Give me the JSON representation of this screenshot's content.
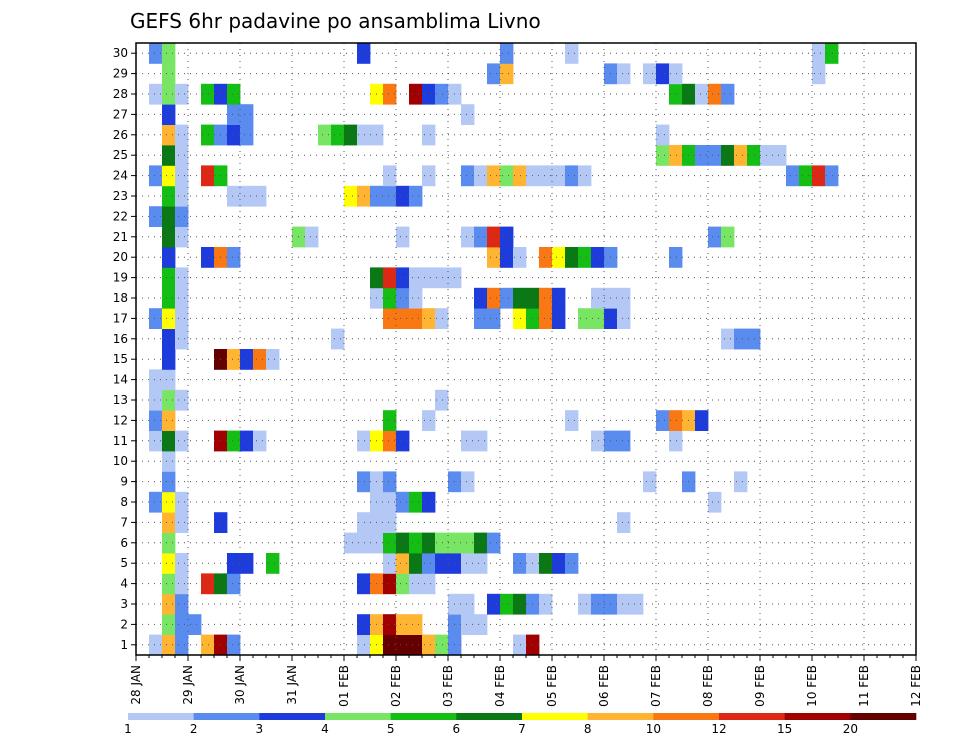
{
  "chart_data": {
    "type": "heatmap",
    "title": "GEFS 6hr padavine po ansamblima Livno",
    "xlabel": "",
    "ylabel": "",
    "x_ticks": [
      "28 JAN",
      "29 JAN",
      "30 JAN",
      "31 JAN",
      "01 FEB",
      "02 FEB",
      "03 FEB",
      "04 FEB",
      "05 FEB",
      "06 FEB",
      "07 FEB",
      "08 FEB",
      "09 FEB",
      "10 FEB",
      "11 FEB",
      "12 FEB"
    ],
    "y_ticks": [
      "1",
      "2",
      "3",
      "4",
      "5",
      "6",
      "7",
      "8",
      "9",
      "10",
      "11",
      "12",
      "13",
      "14",
      "15",
      "16",
      "17",
      "18",
      "19",
      "20",
      "21",
      "22",
      "23",
      "24",
      "25",
      "26",
      "27",
      "28",
      "29",
      "30"
    ],
    "x_range": [
      "28 JAN 00Z",
      "12 FEB 00Z"
    ],
    "y_range": [
      0.5,
      30.5
    ],
    "grid": true,
    "legend_position": "bottom",
    "color_scale": {
      "thresholds": [
        "1",
        "2",
        "3",
        "4",
        "5",
        "6",
        "7",
        "8",
        "10",
        "12",
        "15",
        "20"
      ],
      "colors": [
        "#b4c8f5",
        "#5a8cf0",
        "#1e3cdc",
        "#78e664",
        "#14be14",
        "#0a7814",
        "#ffff00",
        "#ffb432",
        "#fa7814",
        "#dc2814",
        "#a00000",
        "#640000"
      ]
    },
    "cells": [
      [
        1,
        1,
        1
      ],
      [
        1,
        2,
        8
      ],
      [
        1,
        3,
        2
      ],
      [
        1,
        5,
        8
      ],
      [
        1,
        6,
        11
      ],
      [
        1,
        7,
        2
      ],
      [
        1,
        17,
        1
      ],
      [
        1,
        18,
        7
      ],
      [
        1,
        19,
        12
      ],
      [
        1,
        20,
        12
      ],
      [
        1,
        21,
        12
      ],
      [
        1,
        22,
        8
      ],
      [
        1,
        23,
        4
      ],
      [
        1,
        24,
        2
      ],
      [
        1,
        29,
        1
      ],
      [
        1,
        30,
        11
      ],
      [
        2,
        2,
        4
      ],
      [
        2,
        3,
        2
      ],
      [
        2,
        4,
        2
      ],
      [
        2,
        17,
        3
      ],
      [
        2,
        18,
        8
      ],
      [
        2,
        19,
        11
      ],
      [
        2,
        20,
        8
      ],
      [
        2,
        21,
        8
      ],
      [
        2,
        24,
        2
      ],
      [
        2,
        25,
        1
      ],
      [
        2,
        26,
        1
      ],
      [
        3,
        2,
        8
      ],
      [
        3,
        3,
        2
      ],
      [
        3,
        24,
        1
      ],
      [
        3,
        25,
        1
      ],
      [
        3,
        27,
        3
      ],
      [
        3,
        28,
        5
      ],
      [
        3,
        29,
        6
      ],
      [
        3,
        30,
        2
      ],
      [
        3,
        31,
        1
      ],
      [
        3,
        34,
        1
      ],
      [
        3,
        35,
        2
      ],
      [
        3,
        36,
        2
      ],
      [
        3,
        37,
        1
      ],
      [
        3,
        38,
        1
      ],
      [
        4,
        2,
        4
      ],
      [
        4,
        3,
        1
      ],
      [
        4,
        5,
        10
      ],
      [
        4,
        6,
        6
      ],
      [
        4,
        7,
        2
      ],
      [
        4,
        17,
        3
      ],
      [
        4,
        18,
        9
      ],
      [
        4,
        19,
        11
      ],
      [
        4,
        20,
        4
      ],
      [
        4,
        21,
        1
      ],
      [
        4,
        22,
        1
      ],
      [
        5,
        2,
        7
      ],
      [
        5,
        3,
        1
      ],
      [
        5,
        7,
        3
      ],
      [
        5,
        8,
        3
      ],
      [
        5,
        10,
        5
      ],
      [
        5,
        19,
        1
      ],
      [
        5,
        20,
        8
      ],
      [
        5,
        21,
        6
      ],
      [
        5,
        22,
        2
      ],
      [
        5,
        23,
        3
      ],
      [
        5,
        24,
        3
      ],
      [
        5,
        25,
        1
      ],
      [
        5,
        26,
        1
      ],
      [
        5,
        29,
        2
      ],
      [
        5,
        30,
        1
      ],
      [
        5,
        31,
        6
      ],
      [
        5,
        32,
        3
      ],
      [
        5,
        33,
        2
      ],
      [
        6,
        2,
        4
      ],
      [
        6,
        16,
        1
      ],
      [
        6,
        17,
        1
      ],
      [
        6,
        18,
        1
      ],
      [
        6,
        19,
        5
      ],
      [
        6,
        20,
        6
      ],
      [
        6,
        21,
        5
      ],
      [
        6,
        22,
        6
      ],
      [
        6,
        23,
        4
      ],
      [
        6,
        24,
        4
      ],
      [
        6,
        25,
        4
      ],
      [
        6,
        26,
        6
      ],
      [
        6,
        27,
        2
      ],
      [
        7,
        2,
        8
      ],
      [
        7,
        3,
        1
      ],
      [
        7,
        6,
        3
      ],
      [
        7,
        17,
        1
      ],
      [
        7,
        18,
        1
      ],
      [
        7,
        19,
        1
      ],
      [
        7,
        37,
        1
      ],
      [
        8,
        1,
        2
      ],
      [
        8,
        2,
        7
      ],
      [
        8,
        3,
        1
      ],
      [
        8,
        18,
        1
      ],
      [
        8,
        19,
        1
      ],
      [
        8,
        20,
        2
      ],
      [
        8,
        21,
        5
      ],
      [
        8,
        22,
        3
      ],
      [
        8,
        44,
        1
      ],
      [
        9,
        2,
        2
      ],
      [
        9,
        17,
        2
      ],
      [
        9,
        18,
        1
      ],
      [
        9,
        19,
        2
      ],
      [
        9,
        24,
        2
      ],
      [
        9,
        25,
        1
      ],
      [
        9,
        39,
        1
      ],
      [
        9,
        42,
        2
      ],
      [
        9,
        46,
        1
      ],
      [
        10,
        2,
        1
      ],
      [
        11,
        1,
        1
      ],
      [
        11,
        2,
        6
      ],
      [
        11,
        3,
        1
      ],
      [
        11,
        6,
        11
      ],
      [
        11,
        7,
        5
      ],
      [
        11,
        8,
        3
      ],
      [
        11,
        9,
        1
      ],
      [
        11,
        17,
        1
      ],
      [
        11,
        18,
        7
      ],
      [
        11,
        19,
        9
      ],
      [
        11,
        20,
        3
      ],
      [
        11,
        25,
        1
      ],
      [
        11,
        26,
        1
      ],
      [
        11,
        35,
        1
      ],
      [
        11,
        36,
        2
      ],
      [
        11,
        37,
        2
      ],
      [
        11,
        41,
        1
      ],
      [
        12,
        1,
        2
      ],
      [
        12,
        2,
        8
      ],
      [
        12,
        19,
        5
      ],
      [
        12,
        22,
        1
      ],
      [
        12,
        33,
        1
      ],
      [
        12,
        40,
        2
      ],
      [
        12,
        41,
        9
      ],
      [
        12,
        42,
        8
      ],
      [
        12,
        43,
        3
      ],
      [
        13,
        1,
        1
      ],
      [
        13,
        2,
        4
      ],
      [
        13,
        3,
        1
      ],
      [
        13,
        23,
        1
      ],
      [
        14,
        1,
        1
      ],
      [
        14,
        2,
        1
      ],
      [
        15,
        2,
        3
      ],
      [
        15,
        6,
        12
      ],
      [
        15,
        7,
        8
      ],
      [
        15,
        8,
        3
      ],
      [
        15,
        9,
        9
      ],
      [
        15,
        10,
        1
      ],
      [
        16,
        2,
        3
      ],
      [
        16,
        3,
        1
      ],
      [
        16,
        15,
        1
      ],
      [
        16,
        45,
        1
      ],
      [
        16,
        46,
        2
      ],
      [
        16,
        47,
        2
      ],
      [
        17,
        1,
        2
      ],
      [
        17,
        2,
        7
      ],
      [
        17,
        3,
        1
      ],
      [
        17,
        19,
        9
      ],
      [
        17,
        20,
        9
      ],
      [
        17,
        21,
        9
      ],
      [
        17,
        22,
        8
      ],
      [
        17,
        23,
        1
      ],
      [
        17,
        26,
        2
      ],
      [
        17,
        27,
        2
      ],
      [
        17,
        29,
        7
      ],
      [
        17,
        30,
        5
      ],
      [
        17,
        31,
        9
      ],
      [
        17,
        32,
        3
      ],
      [
        17,
        34,
        4
      ],
      [
        17,
        35,
        4
      ],
      [
        17,
        36,
        3
      ],
      [
        17,
        37,
        1
      ],
      [
        18,
        2,
        5
      ],
      [
        18,
        3,
        1
      ],
      [
        18,
        18,
        1
      ],
      [
        18,
        19,
        5
      ],
      [
        18,
        20,
        2
      ],
      [
        18,
        21,
        1
      ],
      [
        18,
        26,
        3
      ],
      [
        18,
        27,
        9
      ],
      [
        18,
        28,
        2
      ],
      [
        18,
        29,
        6
      ],
      [
        18,
        30,
        6
      ],
      [
        18,
        31,
        9
      ],
      [
        18,
        32,
        3
      ],
      [
        18,
        35,
        1
      ],
      [
        18,
        36,
        1
      ],
      [
        18,
        37,
        1
      ],
      [
        19,
        2,
        5
      ],
      [
        19,
        3,
        1
      ],
      [
        19,
        18,
        6
      ],
      [
        19,
        19,
        10
      ],
      [
        19,
        20,
        3
      ],
      [
        19,
        21,
        1
      ],
      [
        19,
        22,
        1
      ],
      [
        19,
        23,
        1
      ],
      [
        19,
        24,
        1
      ],
      [
        20,
        2,
        3
      ],
      [
        20,
        5,
        3
      ],
      [
        20,
        6,
        9
      ],
      [
        20,
        7,
        2
      ],
      [
        20,
        27,
        8
      ],
      [
        20,
        28,
        3
      ],
      [
        20,
        29,
        1
      ],
      [
        20,
        31,
        9
      ],
      [
        20,
        32,
        7
      ],
      [
        20,
        33,
        6
      ],
      [
        20,
        34,
        5
      ],
      [
        20,
        35,
        3
      ],
      [
        20,
        36,
        2
      ],
      [
        20,
        41,
        2
      ],
      [
        21,
        2,
        6
      ],
      [
        21,
        3,
        1
      ],
      [
        21,
        12,
        4
      ],
      [
        21,
        13,
        1
      ],
      [
        21,
        20,
        1
      ],
      [
        21,
        25,
        1
      ],
      [
        21,
        26,
        2
      ],
      [
        21,
        27,
        10
      ],
      [
        21,
        28,
        3
      ],
      [
        21,
        44,
        2
      ],
      [
        21,
        45,
        4
      ],
      [
        22,
        1,
        2
      ],
      [
        22,
        2,
        6
      ],
      [
        22,
        3,
        2
      ],
      [
        23,
        2,
        5
      ],
      [
        23,
        3,
        1
      ],
      [
        23,
        7,
        1
      ],
      [
        23,
        8,
        1
      ],
      [
        23,
        9,
        1
      ],
      [
        23,
        16,
        7
      ],
      [
        23,
        17,
        8
      ],
      [
        23,
        18,
        2
      ],
      [
        23,
        19,
        2
      ],
      [
        23,
        20,
        3
      ],
      [
        23,
        21,
        2
      ],
      [
        24,
        1,
        2
      ],
      [
        24,
        2,
        7
      ],
      [
        24,
        3,
        1
      ],
      [
        24,
        5,
        10
      ],
      [
        24,
        6,
        5
      ],
      [
        24,
        19,
        1
      ],
      [
        24,
        22,
        1
      ],
      [
        24,
        25,
        2
      ],
      [
        24,
        26,
        1
      ],
      [
        24,
        27,
        8
      ],
      [
        24,
        28,
        4
      ],
      [
        24,
        29,
        8
      ],
      [
        24,
        30,
        1
      ],
      [
        24,
        31,
        1
      ],
      [
        24,
        32,
        1
      ],
      [
        24,
        33,
        2
      ],
      [
        24,
        34,
        1
      ],
      [
        24,
        50,
        2
      ],
      [
        24,
        51,
        5
      ],
      [
        24,
        52,
        10
      ],
      [
        24,
        53,
        2
      ],
      [
        25,
        2,
        6
      ],
      [
        25,
        3,
        1
      ],
      [
        25,
        40,
        4
      ],
      [
        25,
        41,
        8
      ],
      [
        25,
        42,
        5
      ],
      [
        25,
        43,
        2
      ],
      [
        25,
        44,
        2
      ],
      [
        25,
        45,
        6
      ],
      [
        25,
        46,
        8
      ],
      [
        25,
        47,
        5
      ],
      [
        25,
        48,
        1
      ],
      [
        25,
        49,
        1
      ],
      [
        26,
        2,
        8
      ],
      [
        26,
        3,
        1
      ],
      [
        26,
        5,
        5
      ],
      [
        26,
        6,
        2
      ],
      [
        26,
        7,
        3
      ],
      [
        26,
        8,
        2
      ],
      [
        26,
        14,
        4
      ],
      [
        26,
        15,
        5
      ],
      [
        26,
        16,
        6
      ],
      [
        26,
        17,
        1
      ],
      [
        26,
        18,
        1
      ],
      [
        26,
        22,
        1
      ],
      [
        26,
        40,
        1
      ],
      [
        27,
        2,
        3
      ],
      [
        27,
        7,
        2
      ],
      [
        27,
        8,
        2
      ],
      [
        27,
        25,
        1
      ],
      [
        28,
        1,
        1
      ],
      [
        28,
        2,
        4
      ],
      [
        28,
        3,
        1
      ],
      [
        28,
        5,
        5
      ],
      [
        28,
        6,
        3
      ],
      [
        28,
        7,
        5
      ],
      [
        28,
        18,
        7
      ],
      [
        28,
        19,
        9
      ],
      [
        28,
        21,
        11
      ],
      [
        28,
        22,
        3
      ],
      [
        28,
        23,
        2
      ],
      [
        28,
        24,
        1
      ],
      [
        28,
        41,
        5
      ],
      [
        28,
        42,
        6
      ],
      [
        28,
        43,
        1
      ],
      [
        28,
        44,
        9
      ],
      [
        28,
        45,
        2
      ],
      [
        29,
        2,
        4
      ],
      [
        29,
        27,
        2
      ],
      [
        29,
        28,
        8
      ],
      [
        29,
        36,
        2
      ],
      [
        29,
        37,
        1
      ],
      [
        29,
        39,
        1
      ],
      [
        29,
        40,
        3
      ],
      [
        29,
        41,
        1
      ],
      [
        29,
        52,
        1
      ],
      [
        30,
        1,
        2
      ],
      [
        30,
        2,
        4
      ],
      [
        30,
        17,
        3
      ],
      [
        30,
        28,
        2
      ],
      [
        30,
        33,
        1
      ],
      [
        30,
        52,
        1
      ],
      [
        30,
        53,
        5
      ]
    ]
  }
}
